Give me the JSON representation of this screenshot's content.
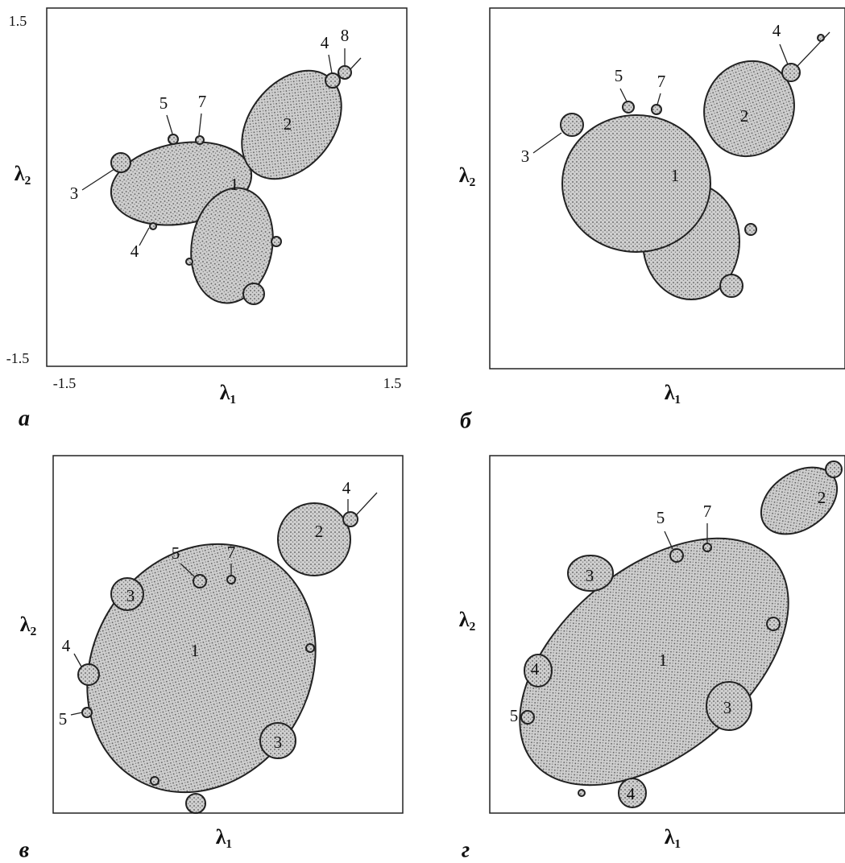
{
  "panels": [
    {
      "letter": "a",
      "x_label": "λ₁",
      "y_label": "λ₂",
      "ticks": {
        "y_top": "1.5",
        "y_bottom": "-1.5",
        "x_left": "-1.5",
        "x_right": "1.5"
      },
      "regions": [
        "1",
        "2",
        "3",
        "4",
        "5",
        "7",
        "4",
        "8"
      ]
    },
    {
      "letter": "б",
      "x_label": "λ₁",
      "y_label": "λ₂",
      "regions": [
        "1",
        "2",
        "3",
        "4",
        "5",
        "7"
      ]
    },
    {
      "letter": "в",
      "x_label": "λ₁",
      "y_label": "λ₂",
      "regions": [
        "1",
        "2",
        "3",
        "3",
        "4",
        "5",
        "7",
        "4",
        "5"
      ]
    },
    {
      "letter": "г",
      "x_label": "λ₁",
      "y_label": "λ₂",
      "regions": [
        "1",
        "2",
        "3",
        "3",
        "4",
        "4",
        "5",
        "7",
        "5"
      ]
    }
  ]
}
